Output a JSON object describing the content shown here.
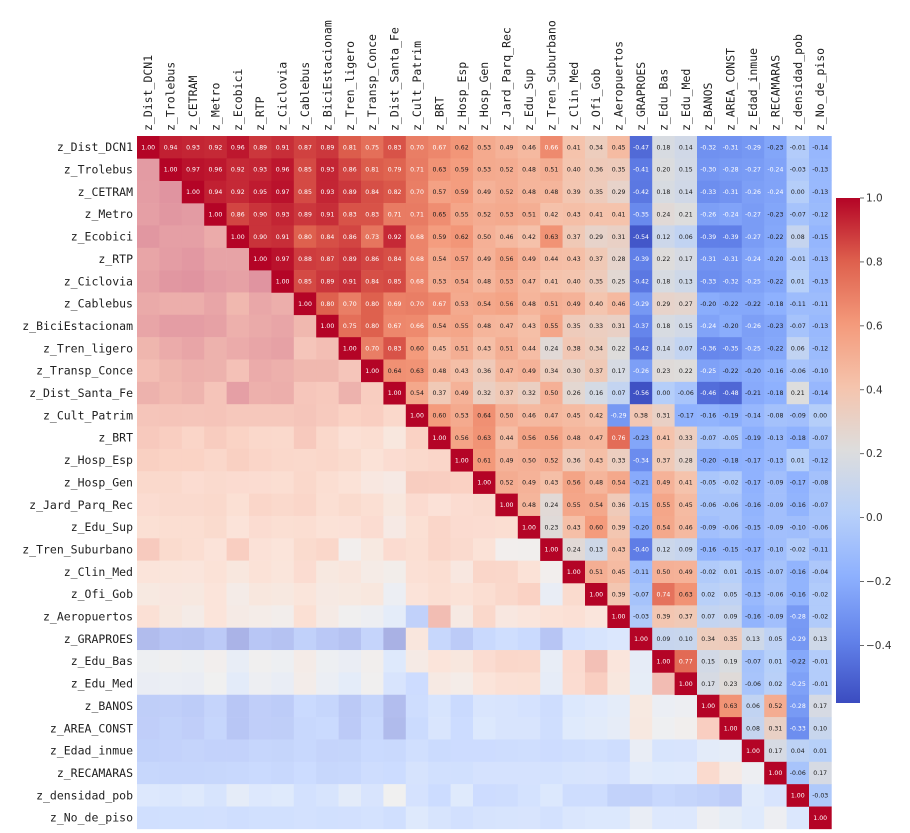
{
  "chart_data": {
    "type": "heatmap",
    "title": "",
    "labels": [
      "z_Dist_DCN1",
      "z_Trolebus",
      "z_CETRAM",
      "z_Metro",
      "z_Ecobici",
      "z_RTP",
      "z_Ciclovia",
      "z_Cablebus",
      "z_BiciEstacionam",
      "z_Tren_ligero",
      "z_Transp_Conce",
      "z_Dist_Santa_Fe",
      "z_Cult_Patrim",
      "z_BRT",
      "z_Hosp_Esp",
      "z_Hosp_Gen",
      "z_Jard_Parq_Rec",
      "z_Edu_Sup",
      "z_Tren_Suburbano",
      "z_Clin_Med",
      "z_Ofi_Gob",
      "z_Aeropuertos",
      "z_GRAPROES",
      "z_Edu_Bas",
      "z_Edu_Med",
      "z_BANOS",
      "z_AREA_CONST",
      "z_Edad_inmue",
      "z_RECAMARAS",
      "z_densidad_pob",
      "z_No_de_piso"
    ],
    "upper_triangle_rows": [
      [
        1.0,
        0.94,
        0.93,
        0.92,
        0.96,
        0.89,
        0.91,
        0.87,
        0.89,
        0.81,
        0.75,
        0.83,
        0.7,
        0.67,
        0.62,
        0.53,
        0.49,
        0.46,
        0.66,
        0.41,
        0.34,
        0.45,
        -0.47,
        0.18,
        0.14,
        -0.32,
        -0.31,
        -0.29,
        -0.23,
        -0.01,
        -0.14
      ],
      [
        1.0,
        0.97,
        0.96,
        0.92,
        0.93,
        0.96,
        0.85,
        0.93,
        0.86,
        0.81,
        0.79,
        0.71,
        0.63,
        0.59,
        0.53,
        0.52,
        0.48,
        0.51,
        0.4,
        0.36,
        0.35,
        -0.41,
        0.2,
        0.15,
        -0.3,
        -0.28,
        -0.27,
        -0.24,
        -0.03,
        -0.13
      ],
      [
        1.0,
        0.94,
        0.92,
        0.95,
        0.97,
        0.85,
        0.93,
        0.89,
        0.84,
        0.82,
        0.7,
        0.57,
        0.59,
        0.49,
        0.52,
        0.48,
        0.48,
        0.39,
        0.35,
        0.29,
        -0.42,
        0.18,
        0.14,
        -0.33,
        -0.31,
        -0.26,
        -0.24,
        0.0,
        -0.13
      ],
      [
        1.0,
        0.86,
        0.9,
        0.93,
        0.89,
        0.91,
        0.83,
        0.83,
        0.71,
        0.71,
        0.65,
        0.55,
        0.52,
        0.53,
        0.51,
        0.42,
        0.43,
        0.41,
        0.41,
        -0.35,
        0.24,
        0.21,
        -0.26,
        -0.24,
        -0.27,
        -0.23,
        -0.07,
        -0.12
      ],
      [
        1.0,
        0.9,
        0.91,
        0.8,
        0.84,
        0.86,
        0.73,
        0.92,
        0.68,
        0.59,
        0.62,
        0.5,
        0.46,
        0.42,
        0.63,
        0.37,
        0.29,
        0.31,
        -0.54,
        0.12,
        0.06,
        -0.39,
        -0.39,
        -0.27,
        -0.22,
        0.08,
        -0.15
      ],
      [
        1.0,
        0.97,
        0.88,
        0.87,
        0.89,
        0.86,
        0.84,
        0.68,
        0.54,
        0.57,
        0.49,
        0.56,
        0.49,
        0.44,
        0.43,
        0.37,
        0.28,
        -0.39,
        0.22,
        0.17,
        -0.31,
        -0.31,
        -0.24,
        -0.2,
        -0.01,
        -0.13
      ],
      [
        1.0,
        0.85,
        0.89,
        0.91,
        0.84,
        0.85,
        0.68,
        0.53,
        0.54,
        0.48,
        0.53,
        0.47,
        0.41,
        0.4,
        0.35,
        0.25,
        -0.42,
        0.18,
        0.13,
        -0.33,
        -0.32,
        -0.25,
        -0.22,
        0.01,
        -0.13
      ],
      [
        1.0,
        0.8,
        0.7,
        0.8,
        0.69,
        0.7,
        0.67,
        0.53,
        0.54,
        0.56,
        0.48,
        0.51,
        0.49,
        0.4,
        0.46,
        -0.29,
        0.29,
        0.27,
        -0.2,
        -0.22,
        -0.22,
        -0.18,
        -0.11,
        -0.11
      ],
      [
        1.0,
        0.75,
        0.8,
        0.67,
        0.66,
        0.54,
        0.55,
        0.48,
        0.47,
        0.43,
        0.55,
        0.35,
        0.33,
        0.31,
        -0.37,
        0.18,
        0.15,
        -0.24,
        -0.2,
        -0.26,
        -0.23,
        -0.07,
        -0.13
      ],
      [
        1.0,
        0.7,
        0.83,
        0.6,
        0.45,
        0.51,
        0.43,
        0.51,
        0.44,
        0.24,
        0.38,
        0.34,
        0.22,
        -0.42,
        0.14,
        0.07,
        -0.36,
        -0.35,
        -0.25,
        -0.22,
        0.06,
        -0.12
      ],
      [
        1.0,
        0.64,
        0.63,
        0.48,
        0.43,
        0.36,
        0.47,
        0.49,
        0.34,
        0.3,
        0.37,
        0.17,
        -0.26,
        0.23,
        0.22,
        -0.25,
        -0.22,
        -0.2,
        -0.16,
        -0.06,
        -0.1
      ],
      [
        1.0,
        0.54,
        0.37,
        0.49,
        0.32,
        0.37,
        0.32,
        0.5,
        0.26,
        0.16,
        0.07,
        -0.56,
        -0.0,
        -0.06,
        -0.46,
        -0.48,
        -0.21,
        -0.18,
        0.21,
        -0.14
      ],
      [
        1.0,
        0.6,
        0.53,
        0.64,
        0.5,
        0.46,
        0.47,
        0.45,
        0.42,
        -0.29,
        0.38,
        0.31,
        -0.17,
        -0.16,
        -0.19,
        -0.14,
        -0.08,
        -0.09
      ],
      [
        1.0,
        0.56,
        0.63,
        0.44,
        0.56,
        0.56,
        0.48,
        0.47,
        0.76,
        -0.23,
        0.41,
        0.33,
        -0.07,
        -0.05,
        -0.19,
        -0.13,
        -0.18,
        -0.07
      ],
      [
        1.0,
        0.61,
        0.49,
        0.5,
        0.52,
        0.36,
        0.43,
        0.33,
        -0.34,
        0.37,
        0.28,
        -0.2,
        -0.18,
        -0.17,
        -0.13,
        0.01,
        -0.12
      ],
      [
        1.0,
        0.52,
        0.49,
        0.43,
        0.56,
        0.48,
        0.54,
        -0.21,
        0.49,
        0.41,
        -0.05,
        -0.02,
        -0.17,
        -0.09,
        -0.17,
        -0.08
      ],
      [
        1.0,
        0.48,
        0.24,
        0.55,
        0.54,
        0.36,
        -0.15,
        0.55,
        0.45,
        -0.06,
        -0.06,
        -0.16,
        -0.09,
        -0.16,
        -0.07
      ],
      [
        1.0,
        0.23,
        0.43,
        0.6,
        0.39,
        -0.2,
        0.54,
        0.46,
        -0.09,
        -0.06,
        -0.15,
        -0.09,
        -0.1,
        -0.06
      ],
      [
        1.0,
        0.24,
        0.13,
        0.43,
        -0.4,
        0.12,
        0.09,
        -0.16,
        -0.15,
        -0.17,
        -0.1,
        -0.02,
        -0.11
      ],
      [
        1.0,
        0.51,
        0.45,
        -0.11,
        0.5,
        0.49,
        -0.02,
        0.01,
        -0.15,
        -0.07,
        -0.16,
        -0.04
      ],
      [
        1.0,
        0.39,
        -0.07,
        0.74,
        0.63,
        0.02,
        0.05,
        -0.13,
        -0.06,
        -0.16,
        -0.02
      ],
      [
        1.0,
        -0.03,
        0.39,
        0.37,
        0.07,
        0.09,
        -0.16,
        -0.09,
        -0.28,
        -0.02
      ],
      [
        1.0,
        0.09,
        0.1,
        0.34,
        0.35,
        0.13,
        0.05,
        -0.29,
        0.13
      ],
      [
        1.0,
        0.77,
        0.15,
        0.19,
        -0.07,
        0.01,
        -0.22,
        -0.01
      ],
      [
        1.0,
        0.17,
        0.23,
        -0.06,
        0.02,
        -0.25,
        -0.01
      ],
      [
        1.0,
        0.63,
        0.06,
        0.52,
        -0.28,
        0.17
      ],
      [
        1.0,
        0.08,
        0.31,
        -0.33,
        0.1
      ],
      [
        1.0,
        0.17,
        0.04,
        0.01
      ],
      [
        1.0,
        -0.06,
        0.17
      ],
      [
        1.0,
        -0.03
      ],
      [
        1.0
      ]
    ],
    "colorbar": {
      "ticks": [
        1.0,
        0.8,
        0.6,
        0.4,
        0.2,
        0.0,
        -0.2,
        -0.4
      ],
      "vmin": -0.58,
      "vmax": 1.0,
      "cmap": "coolwarm"
    },
    "lower_triangle_tint": "faded",
    "lower_alpha": 0.45
  }
}
